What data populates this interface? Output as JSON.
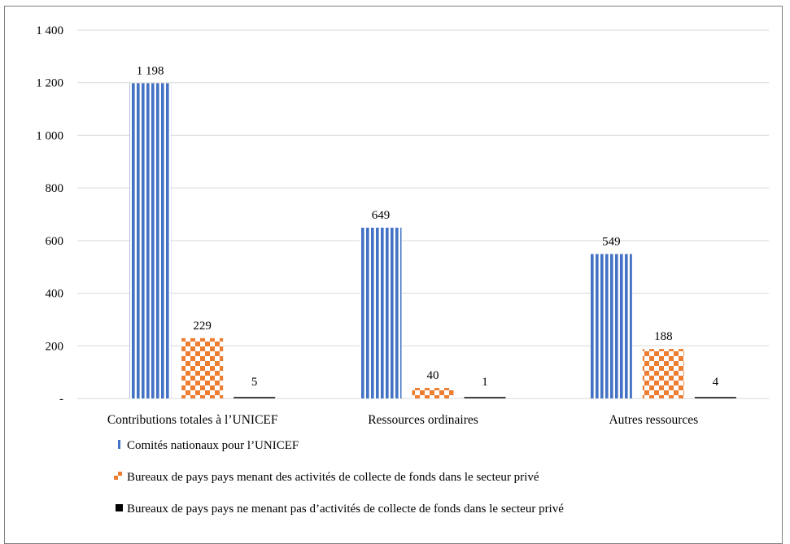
{
  "chart_data": {
    "type": "bar",
    "title": "",
    "xlabel": "",
    "ylabel": "",
    "categories": [
      "Contributions totales à l’UNICEF",
      "Ressources ordinaires",
      "Autres ressources"
    ],
    "ylim": [
      0,
      1400
    ],
    "yticks": [
      0,
      200,
      400,
      600,
      800,
      1000,
      1200,
      1400
    ],
    "ytick_labels": [
      "-",
      "200",
      "400",
      "600",
      "800",
      "1 000",
      "1 200",
      "1 400"
    ],
    "grid": true,
    "legend_position": "bottom-left",
    "series": [
      {
        "name": "Comités nationaux  pour l’UNICEF",
        "values": [
          1198,
          649,
          549
        ],
        "value_labels": [
          "1 198",
          "649",
          "549"
        ],
        "color": "#4472c4",
        "pattern": "vertical-stripes"
      },
      {
        "name": "Bureaux de pays pays menant des activités  de collecte de fonds dans le secteur privé",
        "values": [
          229,
          40,
          188
        ],
        "value_labels": [
          "229",
          "40",
          "188"
        ],
        "color": "#ed7d31",
        "pattern": "checker"
      },
      {
        "name": "Bureaux de pays pays ne menant pas d’activités  de collecte de fonds dans le secteur privé",
        "values": [
          5,
          1,
          4
        ],
        "value_labels": [
          "5",
          "1",
          "4"
        ],
        "color": "#404040",
        "pattern": "solid"
      }
    ]
  }
}
